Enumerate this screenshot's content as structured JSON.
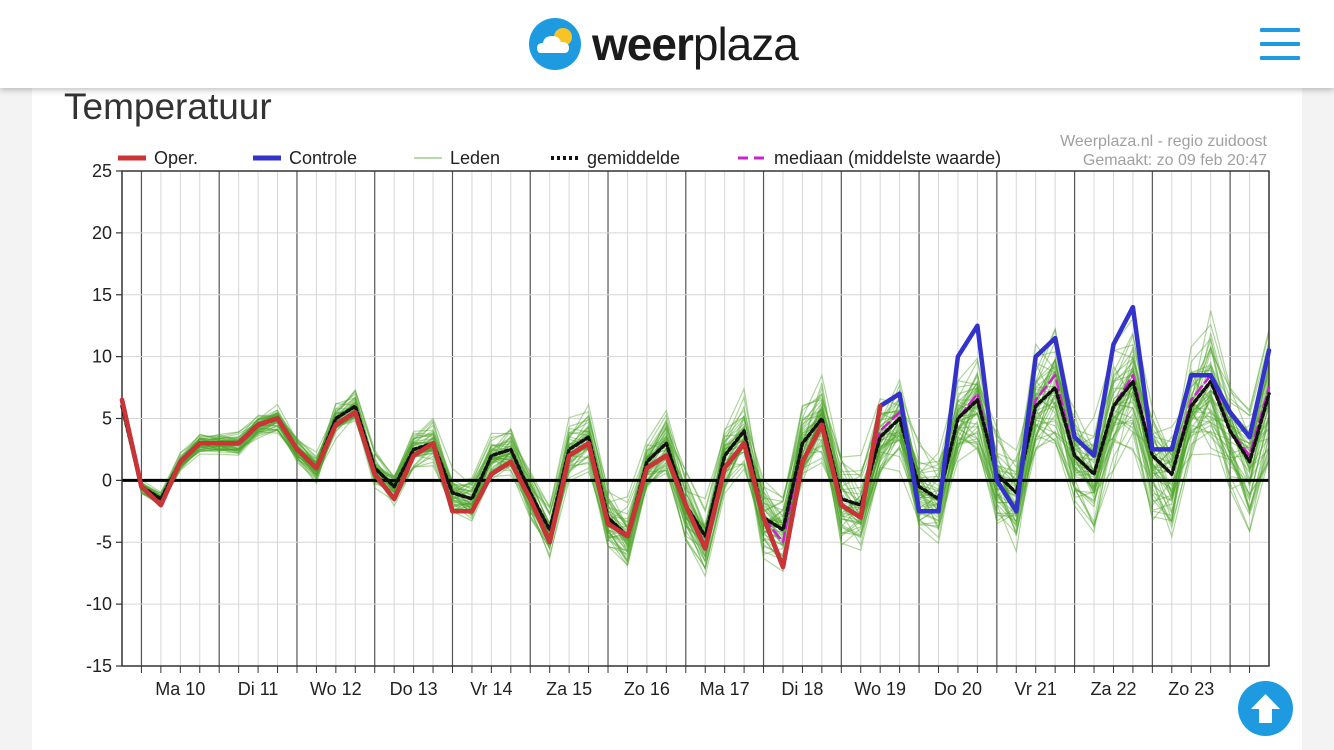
{
  "header": {
    "logo_bold": "weer",
    "logo_light": "plaza",
    "icon": "weather-cloud-sun-icon",
    "menu_icon": "hamburger-menu-icon"
  },
  "card": {
    "title": "Temperatuur"
  },
  "scroll_top_icon": "arrow-up-icon",
  "chart_data": {
    "type": "line",
    "title": "",
    "source_lines": [
      "Weerplaza.nl - regio zuidoost",
      "Gemaakt: zo 09 feb 20:47"
    ],
    "legend": [
      {
        "label": "Oper.",
        "style": "solid-thick",
        "color": "#cc3333"
      },
      {
        "label": "Controle",
        "style": "solid-thick",
        "color": "#3333cc"
      },
      {
        "label": "Leden",
        "style": "solid-thin",
        "color": "#5aac3a"
      },
      {
        "label": "gemiddelde",
        "style": "dotted",
        "color": "#111111"
      },
      {
        "label": "mediaan (middelste waarde)",
        "style": "dashed",
        "color": "#cc22cc"
      }
    ],
    "ylim": [
      -15,
      25
    ],
    "yticks": [
      25,
      20,
      15,
      10,
      5,
      0,
      -5,
      -10,
      -15
    ],
    "xlim": [
      0,
      59
    ],
    "day_labels": [
      "Ma 10",
      "Di 11",
      "Wo 12",
      "Do 13",
      "Vr 14",
      "Za 15",
      "Zo 16",
      "Ma 17",
      "Di 18",
      "Wo 19",
      "Do 20",
      "Vr 21",
      "Za 22",
      "Zo 23"
    ],
    "x_step": "6h",
    "series": [
      {
        "name": "Oper.",
        "values": [
          6.5,
          -0.5,
          -2,
          1.5,
          3,
          3,
          3,
          4.5,
          5,
          2.5,
          1,
          4.5,
          5.5,
          0.5,
          -1.5,
          2,
          3,
          -2.5,
          -2.5,
          0.5,
          1.5,
          -1.5,
          -5,
          2,
          3,
          -3.5,
          -4.5,
          1,
          2,
          -2,
          -5.5,
          1,
          3,
          -3,
          -7,
          1.5,
          4.5,
          -2,
          -3,
          6
        ]
      },
      {
        "name": "Controle",
        "values": [
          6.5,
          -0.5,
          -2,
          1.5,
          3,
          3,
          3,
          4.5,
          5,
          2.5,
          1,
          4.5,
          5.5,
          0.5,
          -1.5,
          2,
          3,
          -2.5,
          -2.5,
          0.5,
          1.5,
          -1.5,
          -5,
          2,
          3,
          -3.5,
          -4.5,
          1,
          2,
          -2,
          -5.5,
          1,
          3,
          -3,
          -7,
          1.5,
          4.5,
          -2,
          -3,
          6,
          7,
          -2.5,
          -2.5,
          10,
          12.5,
          0,
          -2.5,
          10,
          11.5,
          3.5,
          2,
          11,
          14,
          2.5,
          2.5,
          8.5,
          8.5,
          5.5,
          3.5,
          10.5
        ]
      },
      {
        "name": "gemiddelde",
        "values": [
          6,
          -0.5,
          -1.5,
          1.5,
          3,
          3,
          3,
          4.5,
          5,
          2.5,
          1,
          5,
          6,
          1,
          -0.5,
          2.5,
          3,
          -1,
          -1.5,
          2,
          2.5,
          -1,
          -4,
          2.5,
          3.5,
          -3,
          -4.5,
          1.5,
          3,
          -2,
          -4.5,
          2,
          4,
          -3,
          -4,
          3,
          5,
          -1.5,
          -2,
          3.5,
          5,
          -0.5,
          -1.5,
          5,
          6.5,
          0.5,
          -1,
          6,
          7.5,
          2,
          0.5,
          6,
          8,
          2,
          0.5,
          6,
          8,
          4,
          1.5,
          7
        ]
      },
      {
        "name": "mediaan (middelste waarde)",
        "values": [
          6,
          -0.5,
          -1.5,
          1.5,
          3,
          3,
          3,
          4.5,
          5,
          2.5,
          1,
          5,
          6,
          1,
          -0.5,
          2.5,
          3,
          -1,
          -1.5,
          2,
          2.5,
          -1,
          -4,
          2.5,
          3.5,
          -3,
          -4.5,
          1.5,
          3,
          -2,
          -4.5,
          2,
          4,
          -3,
          -5,
          3,
          5,
          -1.5,
          -2,
          4,
          5.5,
          -0.5,
          -1.5,
          5,
          7,
          0.5,
          -1,
          6.5,
          8.5,
          2,
          0.5,
          6,
          8.5,
          2,
          0.5,
          6.5,
          8.5,
          4,
          2,
          7.5
        ]
      }
    ]
  }
}
